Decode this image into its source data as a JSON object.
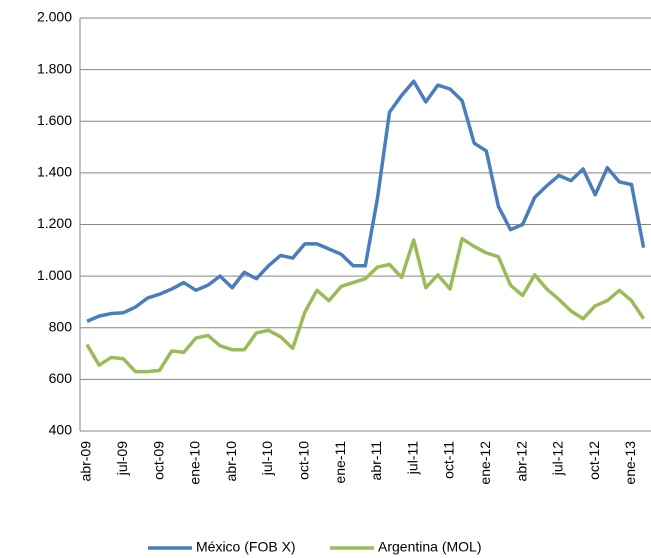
{
  "chart_data": {
    "type": "line",
    "categories": [
      "abr-09",
      null,
      null,
      "jul-09",
      null,
      null,
      "oct-09",
      null,
      null,
      "ene-10",
      null,
      null,
      "abr-10",
      null,
      null,
      "jul-10",
      null,
      null,
      "oct-10",
      null,
      null,
      "ene-11",
      null,
      null,
      "abr-11",
      null,
      null,
      "jul-11",
      null,
      null,
      "oct-11",
      null,
      null,
      "ene-12",
      null,
      null,
      "abr-12",
      null,
      null,
      "jul-12",
      null,
      null,
      "oct-12",
      null,
      null,
      "ene-13",
      null
    ],
    "series": [
      {
        "name": "México (FOB X)",
        "color": "#4a7ebb",
        "values": [
          825,
          845,
          855,
          858,
          880,
          915,
          930,
          950,
          975,
          945,
          965,
          1000,
          955,
          1015,
          990,
          1040,
          1080,
          1070,
          1125,
          1125,
          1105,
          1085,
          1040,
          1040,
          1300,
          1635,
          1700,
          1755,
          1675,
          1740,
          1725,
          1680,
          1515,
          1485,
          1270,
          1180,
          1200,
          1305,
          1350,
          1390,
          1370,
          1415,
          1315,
          1420,
          1365,
          1355,
          1110
        ]
      },
      {
        "name": "Argentina (MOL)",
        "color": "#9bbb59",
        "values": [
          735,
          655,
          685,
          680,
          630,
          630,
          635,
          710,
          705,
          760,
          770,
          730,
          715,
          715,
          780,
          790,
          765,
          720,
          860,
          945,
          905,
          960,
          975,
          990,
          1035,
          1045,
          995,
          1140,
          955,
          1005,
          950,
          1145,
          1115,
          1090,
          1075,
          965,
          925,
          1005,
          950,
          910,
          865,
          835,
          885,
          905,
          945,
          905,
          835
        ]
      }
    ],
    "ylim": [
      400,
      2000
    ],
    "yticks": [
      400,
      600,
      800,
      {
        "value": 1000,
        "label": "1.000"
      },
      {
        "value": 1200,
        "label": "1.200"
      },
      {
        "value": 1400,
        "label": "1.400"
      },
      {
        "value": 1600,
        "label": "1.600"
      },
      {
        "value": 1800,
        "label": "1.800"
      },
      {
        "value": 2000,
        "label": "2.000"
      }
    ],
    "grid": true,
    "legend": "bottom"
  }
}
